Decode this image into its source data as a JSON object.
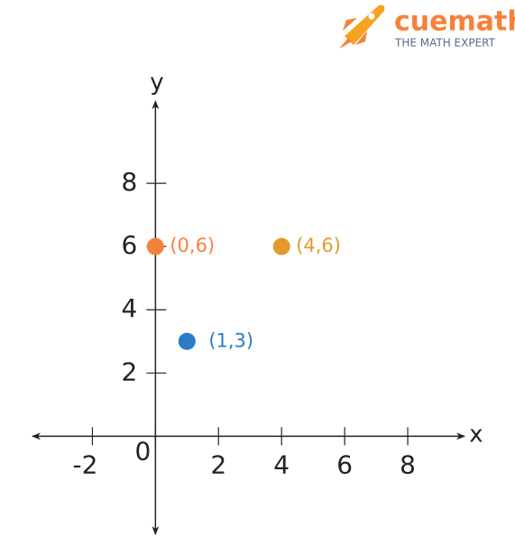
{
  "brand": {
    "name": "cuemath",
    "tagline": "THE MATH EXPERT"
  },
  "chart_data": {
    "type": "scatter",
    "x_label": "x",
    "y_label": "y",
    "xlim": [
      -3.9,
      9.8
    ],
    "ylim": [
      -3.1,
      10.6
    ],
    "xticks": [
      -2,
      0,
      2,
      4,
      6,
      8
    ],
    "yticks": [
      2,
      4,
      6,
      8
    ],
    "series": [
      {
        "name": "(0,6)",
        "color": "#f6813a",
        "x": [
          0
        ],
        "values": [
          6
        ]
      },
      {
        "name": "(4,6)",
        "color": "#e39a2b",
        "x": [
          4
        ],
        "values": [
          6
        ]
      },
      {
        "name": "(1,3)",
        "color": "#2a7cc7",
        "x": [
          1
        ],
        "values": [
          3
        ]
      }
    ]
  }
}
